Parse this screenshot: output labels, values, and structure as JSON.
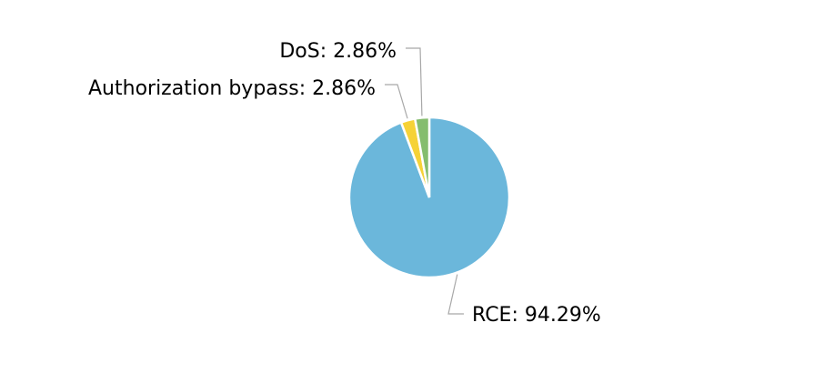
{
  "chart_data": {
    "type": "pie",
    "slices": [
      {
        "name": "RCE",
        "value": 94.29,
        "label": "RCE: 94.29%",
        "color": "#6bb7db"
      },
      {
        "name": "Authorization bypass",
        "value": 2.86,
        "label": "Authorization bypass: 2.86%",
        "color": "#f6d237"
      },
      {
        "name": "DoS",
        "value": 2.86,
        "label": "DoS: 2.86%",
        "color": "#85bd6e"
      }
    ]
  }
}
